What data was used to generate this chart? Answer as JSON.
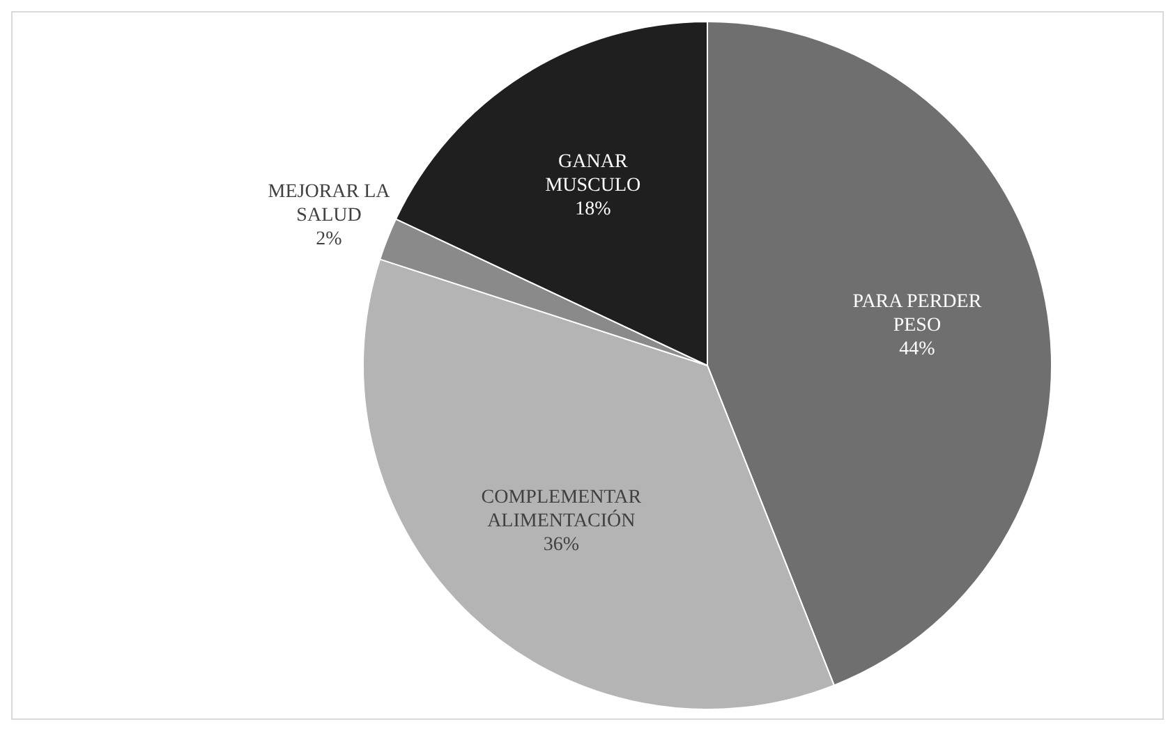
{
  "chart_data": {
    "type": "pie",
    "categories": [
      "PARA PERDER PESO",
      "COMPLEMENTAR ALIMENTACIÓN",
      "MEJORAR LA SALUD",
      "GANAR MUSCULO"
    ],
    "values": [
      44,
      36,
      2,
      18
    ],
    "colors": [
      "#6f6f6f",
      "#b4b4b4",
      "#8a8a8a",
      "#1f1f1f"
    ],
    "value_labels": [
      "44%",
      "36%",
      "2%",
      "18%"
    ],
    "legend": false
  }
}
